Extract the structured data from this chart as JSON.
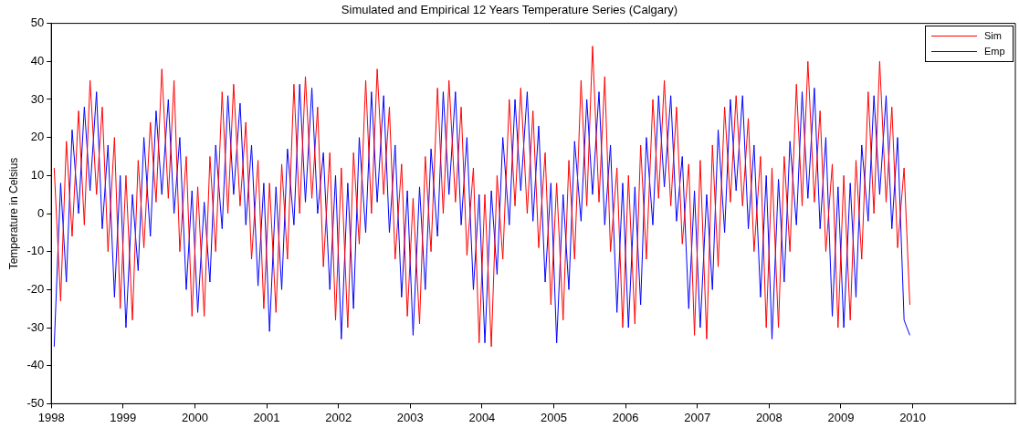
{
  "chart_data": {
    "type": "line",
    "title": "Simulated and Empirical 12 Years Temperature Series (Calgary)",
    "ylabel": "Temperature in Celsius",
    "x": [
      1998.04,
      1998.13,
      1998.21,
      1998.29,
      1998.38,
      1998.46,
      1998.54,
      1998.63,
      1998.71,
      1998.79,
      1998.88,
      1998.96,
      1999.04,
      1999.13,
      1999.21,
      1999.29,
      1999.38,
      1999.46,
      1999.54,
      1999.63,
      1999.71,
      1999.79,
      1999.88,
      1999.96,
      2000.04,
      2000.13,
      2000.21,
      2000.29,
      2000.38,
      2000.46,
      2000.54,
      2000.63,
      2000.71,
      2000.79,
      2000.88,
      2000.96,
      2001.04,
      2001.13,
      2001.21,
      2001.29,
      2001.38,
      2001.46,
      2001.54,
      2001.63,
      2001.71,
      2001.79,
      2001.88,
      2001.96,
      2002.04,
      2002.13,
      2002.21,
      2002.29,
      2002.38,
      2002.46,
      2002.54,
      2002.63,
      2002.71,
      2002.79,
      2002.88,
      2002.96,
      2003.04,
      2003.13,
      2003.21,
      2003.29,
      2003.38,
      2003.46,
      2003.54,
      2003.63,
      2003.71,
      2003.79,
      2003.88,
      2003.96,
      2004.04,
      2004.13,
      2004.21,
      2004.29,
      2004.38,
      2004.46,
      2004.54,
      2004.63,
      2004.71,
      2004.79,
      2004.88,
      2004.96,
      2005.04,
      2005.13,
      2005.21,
      2005.29,
      2005.38,
      2005.46,
      2005.54,
      2005.63,
      2005.71,
      2005.79,
      2005.88,
      2005.96,
      2006.04,
      2006.13,
      2006.21,
      2006.29,
      2006.38,
      2006.46,
      2006.54,
      2006.63,
      2006.71,
      2006.79,
      2006.88,
      2006.96,
      2007.04,
      2007.13,
      2007.21,
      2007.29,
      2007.38,
      2007.46,
      2007.54,
      2007.63,
      2007.71,
      2007.79,
      2007.88,
      2007.96,
      2008.04,
      2008.13,
      2008.21,
      2008.29,
      2008.38,
      2008.46,
      2008.54,
      2008.63,
      2008.71,
      2008.79,
      2008.88,
      2008.96,
      2009.04,
      2009.13,
      2009.21,
      2009.29,
      2009.38,
      2009.46,
      2009.54,
      2009.63,
      2009.71,
      2009.79,
      2009.88,
      2009.96
    ],
    "series": [
      {
        "name": "Sim",
        "color": "#ff0000",
        "values": [
          12,
          -23,
          19,
          -6,
          27,
          -3,
          35,
          5,
          28,
          -10,
          20,
          -25,
          10,
          -28,
          14,
          -9,
          24,
          3,
          38,
          4,
          35,
          -10,
          15,
          -27,
          7,
          -27,
          15,
          -10,
          32,
          0,
          34,
          2,
          24,
          -12,
          14,
          -25,
          8,
          -26,
          13,
          -12,
          34,
          0,
          36,
          4,
          28,
          -14,
          16,
          -28,
          12,
          -30,
          16,
          -8,
          35,
          0,
          38,
          5,
          28,
          -12,
          13,
          -27,
          4,
          -29,
          15,
          -10,
          33,
          0,
          35,
          3,
          28,
          -11,
          12,
          -34,
          5,
          -35,
          10,
          -12,
          30,
          2,
          33,
          0,
          27,
          -9,
          16,
          -24,
          8,
          -28,
          14,
          -12,
          35,
          2,
          44,
          3,
          36,
          -10,
          12,
          -30,
          10,
          -29,
          18,
          -12,
          30,
          4,
          35,
          2,
          28,
          -8,
          13,
          -32,
          14,
          -33,
          18,
          -14,
          28,
          3,
          31,
          2,
          25,
          -10,
          15,
          -30,
          12,
          -30,
          15,
          -10,
          34,
          2,
          40,
          3,
          27,
          -10,
          13,
          -30,
          10,
          -28,
          14,
          -12,
          32,
          0,
          40,
          3,
          28,
          -9,
          12,
          -24
        ]
      },
      {
        "name": "Emp",
        "color": "#0000ff",
        "values": [
          -35,
          8,
          -18,
          22,
          0,
          28,
          6,
          32,
          -4,
          18,
          -22,
          10,
          -30,
          5,
          -15,
          20,
          -6,
          27,
          5,
          30,
          0,
          20,
          -20,
          6,
          -26,
          3,
          -18,
          18,
          -4,
          31,
          5,
          29,
          -3,
          18,
          -19,
          8,
          -31,
          7,
          -20,
          17,
          -3,
          34,
          3,
          33,
          0,
          16,
          -20,
          10,
          -33,
          8,
          -25,
          20,
          -5,
          32,
          3,
          31,
          -5,
          18,
          -22,
          6,
          -32,
          7,
          -20,
          17,
          -6,
          32,
          5,
          32,
          -3,
          20,
          -20,
          5,
          -34,
          6,
          -16,
          20,
          -3,
          30,
          6,
          32,
          -2,
          23,
          -18,
          8,
          -34,
          5,
          -20,
          19,
          -2,
          30,
          5,
          32,
          -3,
          18,
          -26,
          8,
          -30,
          7,
          -24,
          20,
          -3,
          31,
          7,
          31,
          -2,
          15,
          -25,
          6,
          -30,
          5,
          -20,
          22,
          -5,
          30,
          6,
          31,
          -4,
          18,
          -22,
          10,
          -33,
          9,
          -18,
          19,
          -3,
          32,
          4,
          33,
          -4,
          20,
          -27,
          7,
          -30,
          8,
          -22,
          18,
          -2,
          31,
          5,
          31,
          -4,
          20,
          -28,
          -32
        ]
      }
    ],
    "xlim": [
      1998,
      2011.43
    ],
    "ylim": [
      -50,
      50
    ],
    "xticks": [
      1998,
      1999,
      2000,
      2001,
      2002,
      2003,
      2004,
      2005,
      2006,
      2007,
      2008,
      2009,
      2010
    ],
    "yticks": [
      -50,
      -40,
      -30,
      -20,
      -10,
      0,
      10,
      20,
      30,
      40,
      50
    ],
    "grid": false,
    "legend": "top right",
    "marker": "none",
    "line_style": "solid"
  }
}
